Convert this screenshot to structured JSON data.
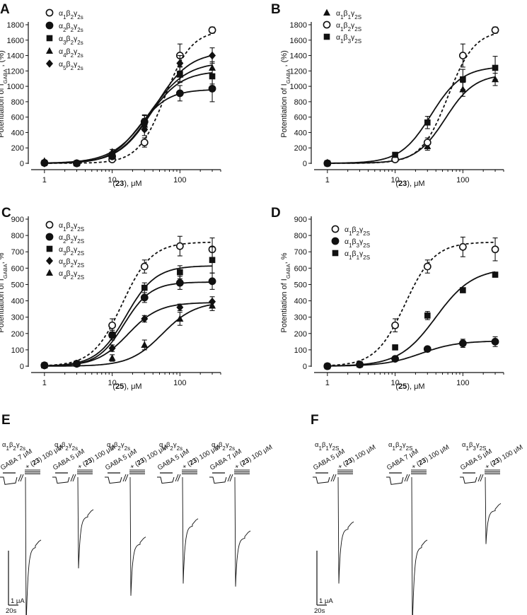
{
  "chart_data": [
    {
      "panel": "A",
      "type": "scatter",
      "xscale": "log",
      "xlabel_pre": "(",
      "xlabel_bold": "23",
      "xlabel_post": "), μM",
      "ylabel_main": "Potentiation of I",
      "ylabel_sub": "GABA",
      "ylabel_post": " , (%)",
      "xticks": [
        1,
        10,
        100
      ],
      "xlim": [
        0.7,
        400
      ],
      "yticks": [
        0,
        200,
        400,
        600,
        800,
        1000,
        1200,
        1400,
        1600,
        1800
      ],
      "ylim": [
        0,
        1800
      ],
      "legend_position": "top-left",
      "series": [
        {
          "name": "α1β2γ2s",
          "marker": "circle-open",
          "line": "dashed",
          "fit": [
            1730,
            60,
            2.2
          ],
          "x": [
            1,
            3,
            10,
            30,
            100,
            300
          ],
          "y": [
            5,
            0,
            50,
            270,
            1400,
            1730
          ],
          "err": [
            0,
            0,
            30,
            60,
            150,
            40
          ]
        },
        {
          "name": "α2β2γ2s",
          "marker": "circle",
          "line": "solid",
          "fit": [
            960,
            25,
            2.0
          ],
          "x": [
            1,
            3,
            10,
            30,
            100,
            300
          ],
          "y": [
            5,
            0,
            90,
            540,
            910,
            970
          ],
          "err": [
            0,
            0,
            30,
            90,
            100,
            170
          ]
        },
        {
          "name": "α3β2γ2s",
          "marker": "square",
          "line": "solid",
          "fit": [
            1200,
            34,
            1.8
          ],
          "x": [
            1,
            3,
            10,
            30,
            100,
            300
          ],
          "y": [
            5,
            0,
            110,
            530,
            1160,
            1130
          ],
          "err": [
            0,
            0,
            30,
            90,
            100,
            100
          ]
        },
        {
          "name": "α4β2γ2s",
          "marker": "triangle",
          "line": "solid",
          "fit": [
            1320,
            36,
            1.6
          ],
          "x": [
            1,
            3,
            10,
            30,
            100,
            300
          ],
          "y": [
            30,
            0,
            150,
            500,
            1150,
            1240
          ],
          "err": [
            0,
            0,
            30,
            80,
            100,
            80
          ]
        },
        {
          "name": "α5β2γ2s",
          "marker": "diamond",
          "line": "solid",
          "fit": [
            1450,
            42,
            1.7
          ],
          "x": [
            1,
            3,
            10,
            30,
            100,
            300
          ],
          "y": [
            0,
            0,
            100,
            440,
            1300,
            1400
          ],
          "err": [
            0,
            0,
            30,
            80,
            100,
            100
          ]
        }
      ]
    },
    {
      "panel": "B",
      "type": "scatter",
      "xscale": "log",
      "xlabel_pre": "(",
      "xlabel_bold": "23",
      "xlabel_post": "), μM",
      "ylabel_main": "Potentiation of I",
      "ylabel_sub": "GABA",
      "ylabel_post": " , (%)",
      "xticks": [
        1,
        10,
        100
      ],
      "xlim": [
        0.7,
        400
      ],
      "yticks": [
        0,
        200,
        400,
        600,
        800,
        1000,
        1200,
        1400,
        1600,
        1800
      ],
      "ylim": [
        0,
        1800
      ],
      "legend_position": "top-left",
      "series": [
        {
          "name": "α1β1γ2S",
          "marker": "triangle",
          "line": "solid",
          "fit": [
            1160,
            55,
            2.0
          ],
          "x": [
            1,
            10,
            30,
            100,
            300
          ],
          "y": [
            10,
            60,
            220,
            960,
            1090
          ],
          "err": [
            0,
            20,
            50,
            90,
            80
          ]
        },
        {
          "name": "α1β2γ2S",
          "marker": "circle-open",
          "line": "dashed",
          "fit": [
            1730,
            60,
            2.2
          ],
          "x": [
            1,
            10,
            30,
            100,
            300
          ],
          "y": [
            0,
            50,
            270,
            1400,
            1730
          ],
          "err": [
            0,
            30,
            60,
            150,
            40
          ]
        },
        {
          "name": "α1β3γ2S",
          "marker": "square",
          "line": "solid",
          "fit": [
            1260,
            34,
            1.9
          ],
          "x": [
            1,
            10,
            30,
            100,
            300
          ],
          "y": [
            0,
            110,
            530,
            1090,
            1240
          ],
          "err": [
            0,
            30,
            80,
            130,
            150
          ]
        }
      ]
    },
    {
      "panel": "C",
      "type": "scatter",
      "xscale": "log",
      "xlabel_pre": "(",
      "xlabel_bold": "25",
      "xlabel_post": "), μM",
      "ylabel_main": "Potentiation of I",
      "ylabel_sub": "GABA",
      "ylabel_post": ", %",
      "xticks": [
        1,
        10,
        100
      ],
      "xlim": [
        0.7,
        400
      ],
      "yticks": [
        0,
        100,
        200,
        300,
        400,
        500,
        600,
        700,
        800,
        900
      ],
      "ylim": [
        0,
        900
      ],
      "legend_position": "top-left",
      "series": [
        {
          "name": "α1β2γ2S",
          "marker": "circle-open",
          "line": "dashed",
          "fit": [
            760,
            14,
            2.0
          ],
          "x": [
            1,
            3,
            10,
            30,
            100,
            300
          ],
          "y": [
            5,
            15,
            250,
            610,
            735,
            715
          ],
          "err": [
            0,
            0,
            40,
            40,
            60,
            70
          ]
        },
        {
          "name": "α2β2γ2S",
          "marker": "circle",
          "line": "solid",
          "fit": [
            515,
            15,
            2.2
          ],
          "x": [
            1,
            3,
            10,
            30,
            100,
            300
          ],
          "y": [
            5,
            15,
            190,
            420,
            510,
            520
          ],
          "err": [
            0,
            0,
            30,
            30,
            40,
            50
          ]
        },
        {
          "name": "α3β2γ2S",
          "marker": "square",
          "line": "solid",
          "fit": [
            615,
            16,
            2.0
          ],
          "x": [
            1,
            3,
            10,
            30,
            100,
            300
          ],
          "y": [
            5,
            15,
            190,
            480,
            575,
            650
          ],
          "err": [
            0,
            0,
            30,
            30,
            40,
            80
          ]
        },
        {
          "name": "α5β2γ2S",
          "marker": "diamond",
          "line": "solid",
          "fit": [
            390,
            17,
            1.9
          ],
          "x": [
            1,
            3,
            10,
            30,
            100,
            300
          ],
          "y": [
            5,
            15,
            110,
            290,
            360,
            395
          ],
          "err": [
            0,
            0,
            20,
            20,
            20,
            30
          ]
        },
        {
          "name": "α4β2γ2S",
          "marker": "triangle",
          "line": "solid",
          "fit": [
            395,
            55,
            1.8
          ],
          "x": [
            1,
            3,
            10,
            30,
            100,
            300
          ],
          "y": [
            5,
            15,
            50,
            130,
            290,
            370
          ],
          "err": [
            0,
            0,
            20,
            30,
            40,
            30
          ]
        }
      ]
    },
    {
      "panel": "D",
      "type": "scatter",
      "xscale": "log",
      "xlabel_pre": "(",
      "xlabel_bold": "25",
      "xlabel_post": "), μM",
      "ylabel_main": "Potentiation of I",
      "ylabel_sub": "GABA",
      "ylabel_post": ", %",
      "xticks": [
        1,
        10,
        100
      ],
      "xlim": [
        0.7,
        400
      ],
      "yticks": [
        0,
        100,
        200,
        300,
        400,
        500,
        600,
        700,
        800,
        900
      ],
      "ylim": [
        0,
        900
      ],
      "legend_position": "top-left",
      "series": [
        {
          "name": "α1β2γ2S",
          "marker": "circle-open",
          "line": "dashed",
          "fit": [
            760,
            14,
            2.0
          ],
          "x": [
            1,
            3,
            10,
            30,
            100,
            300
          ],
          "y": [
            0,
            10,
            250,
            610,
            730,
            715
          ],
          "err": [
            0,
            0,
            40,
            40,
            60,
            70
          ]
        },
        {
          "name": "α1β3γ2S",
          "marker": "circle",
          "line": "solid",
          "fit": [
            155,
            24,
            1.6
          ],
          "x": [
            1,
            3,
            10,
            30,
            100,
            300
          ],
          "y": [
            0,
            10,
            45,
            105,
            140,
            150
          ],
          "err": [
            0,
            0,
            10,
            10,
            25,
            30
          ]
        },
        {
          "name": "α1β1γ2S",
          "marker": "square",
          "line": "solid",
          "fit": [
            600,
            40,
            1.6
          ],
          "x": [
            1,
            3,
            10,
            30,
            100,
            300
          ],
          "y": [
            0,
            10,
            115,
            310,
            465,
            560
          ],
          "err": [
            0,
            0,
            15,
            25,
            15,
            15
          ]
        }
      ]
    }
  ],
  "recordings": {
    "E": {
      "panel": "E",
      "scale_current": "1 μA",
      "scale_time": "20s",
      "traces": [
        {
          "receptor": "α1β2γ2s",
          "gaba": "GABA 7 μM",
          "drug_pre": "+ (",
          "drug_bold": "23",
          "drug_post": ") 100 μM",
          "baseline_amp": 0.12,
          "peak_amp": 2.5,
          "steady_amp": 1.15
        },
        {
          "receptor": "α2β2γ2s",
          "gaba": "GABA 5 μM",
          "drug_pre": "+ (",
          "drug_bold": "23",
          "drug_post": ") 100 μM",
          "baseline_amp": 0.1,
          "peak_amp": 1.5,
          "steady_amp": 0.65
        },
        {
          "receptor": "α3β2γ2s",
          "gaba": "GABA 5 μM",
          "drug_pre": "+ (",
          "drug_bold": "23",
          "drug_post": ") 100 μM",
          "baseline_amp": 0.1,
          "peak_amp": 1.95,
          "steady_amp": 1.1
        },
        {
          "receptor": "α4β2γ2s",
          "gaba": "GABA 5 μM",
          "drug_pre": "+ (",
          "drug_bold": "23",
          "drug_post": ") 100 μM",
          "baseline_amp": 0.1,
          "peak_amp": 1.75,
          "steady_amp": 0.8
        },
        {
          "receptor": "α5β2γ2s",
          "gaba": "GABA 7 μM",
          "drug_pre": "+ (",
          "drug_bold": "23",
          "drug_post": ") 100 μM",
          "baseline_amp": 0.1,
          "peak_amp": 1.8,
          "steady_amp": 1.0
        }
      ]
    },
    "F": {
      "panel": "F",
      "scale_current": "1 μA",
      "scale_time": "20s",
      "traces": [
        {
          "receptor": "α1β1γ2S",
          "gaba": "GABA 5 μM",
          "drug_pre": "+ (",
          "drug_bold": "23",
          "drug_post": ") 100 μM",
          "baseline_amp": 0.1,
          "peak_amp": 1.75,
          "steady_amp": 0.85
        },
        {
          "receptor": "α1β2γ2S",
          "gaba": "GABA 7 μM",
          "drug_pre": "+ (",
          "drug_bold": "23",
          "drug_post": ") 100 μM",
          "baseline_amp": 0.12,
          "peak_amp": 2.5,
          "steady_amp": 1.15
        },
        {
          "receptor": "α1β3γ2S",
          "gaba": "GABA 5 μM",
          "drug_pre": "+ (",
          "drug_bold": "23",
          "drug_post": ") 100 μM",
          "baseline_amp": 0.1,
          "peak_amp": 1.1,
          "steady_amp": 0.55
        }
      ]
    }
  }
}
